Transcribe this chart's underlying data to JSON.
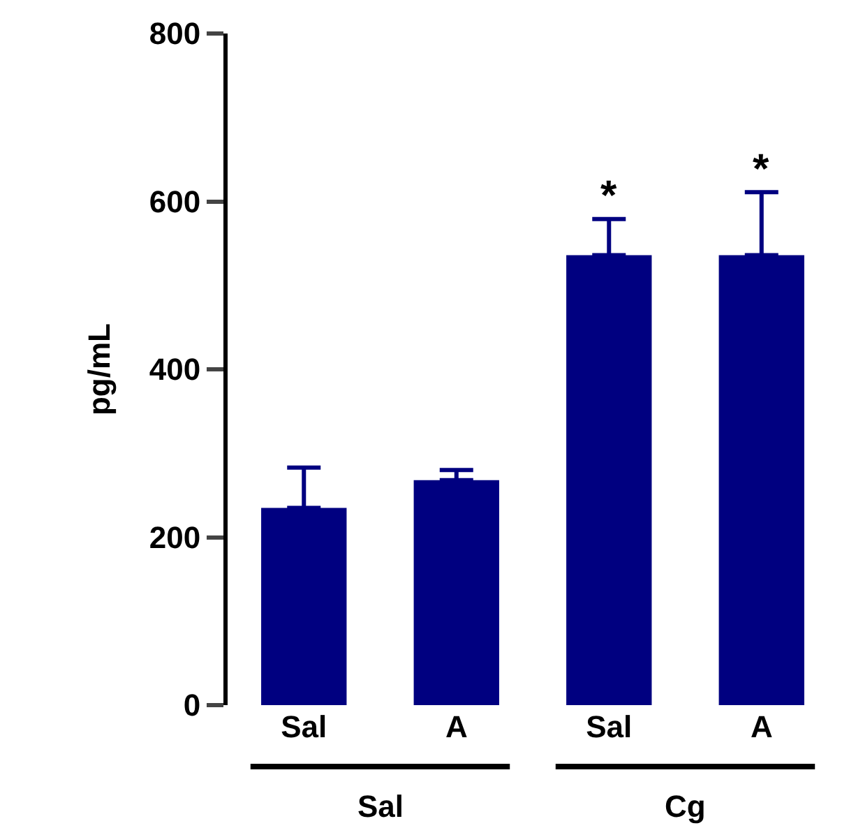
{
  "chart_data": {
    "type": "bar",
    "ylabel": "pg/mL",
    "categories": [
      "Sal",
      "A",
      "Sal",
      "A"
    ],
    "values": [
      235,
      268,
      536,
      536
    ],
    "color": "#000080",
    "errors": [
      [
        235,
        283
      ],
      [
        268,
        280
      ],
      [
        536,
        579
      ],
      [
        536,
        611
      ]
    ],
    "value_labels": [
      null,
      null,
      "*",
      "*"
    ],
    "ylim": [
      0,
      800
    ],
    "yticks": [
      0,
      200,
      400,
      600,
      800
    ],
    "grid": false,
    "annotations": [
      "Sal",
      "Cg"
    ]
  }
}
